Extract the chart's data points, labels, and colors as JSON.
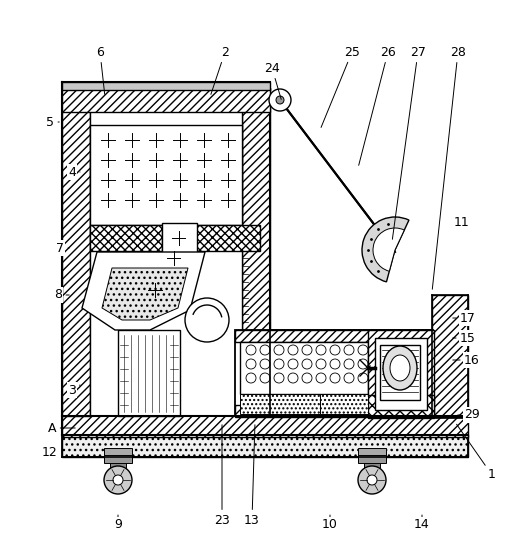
{
  "fig_width": 5.18,
  "fig_height": 5.56,
  "dpi": 100,
  "bg": "#ffffff",
  "labels_data": [
    [
      "1",
      455,
      422,
      492,
      475
    ],
    [
      "2",
      210,
      97,
      225,
      52
    ],
    [
      "3",
      80,
      385,
      72,
      390
    ],
    [
      "4",
      80,
      172,
      72,
      172
    ],
    [
      "5",
      62,
      122,
      50,
      122
    ],
    [
      "6",
      105,
      97,
      100,
      52
    ],
    [
      "7",
      72,
      248,
      60,
      248
    ],
    [
      "8",
      72,
      295,
      58,
      295
    ],
    [
      "9",
      118,
      515,
      118,
      525
    ],
    [
      "10",
      330,
      515,
      330,
      525
    ],
    [
      "11",
      455,
      222,
      462,
      222
    ],
    [
      "12",
      62,
      452,
      50,
      452
    ],
    [
      "13",
      255,
      422,
      252,
      520
    ],
    [
      "14",
      422,
      515,
      422,
      525
    ],
    [
      "15",
      450,
      338,
      468,
      338
    ],
    [
      "16",
      450,
      360,
      472,
      360
    ],
    [
      "17",
      450,
      318,
      468,
      318
    ],
    [
      "23",
      222,
      422,
      222,
      520
    ],
    [
      "24",
      282,
      102,
      272,
      68
    ],
    [
      "25",
      320,
      130,
      352,
      52
    ],
    [
      "26",
      358,
      168,
      388,
      52
    ],
    [
      "27",
      392,
      242,
      418,
      52
    ],
    [
      "28",
      432,
      292,
      458,
      52
    ],
    [
      "29",
      455,
      415,
      472,
      415
    ],
    [
      "A",
      78,
      428,
      52,
      428
    ]
  ]
}
